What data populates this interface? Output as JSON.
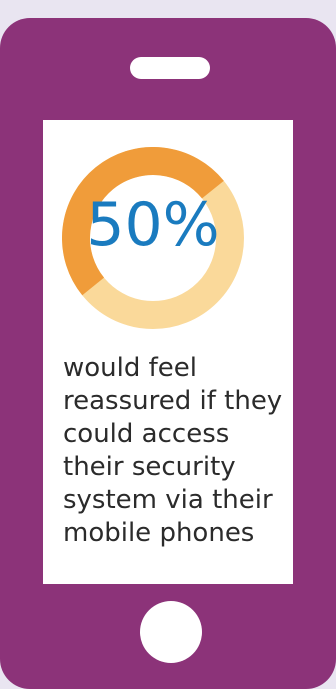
{
  "stat": {
    "value_label": "50%",
    "fraction": 0.5,
    "colors": {
      "highlight": "#f09c3a",
      "remainder": "#fad99a",
      "value_text": "#1a7bbf",
      "phone_body": "#8c3379"
    }
  },
  "caption": {
    "lines": [
      "would feel",
      "reassured if they",
      "could access",
      "their security",
      "system via their",
      "mobile phones"
    ]
  },
  "icons": {
    "speaker": "speaker-slot-icon",
    "home": "home-button-icon"
  }
}
